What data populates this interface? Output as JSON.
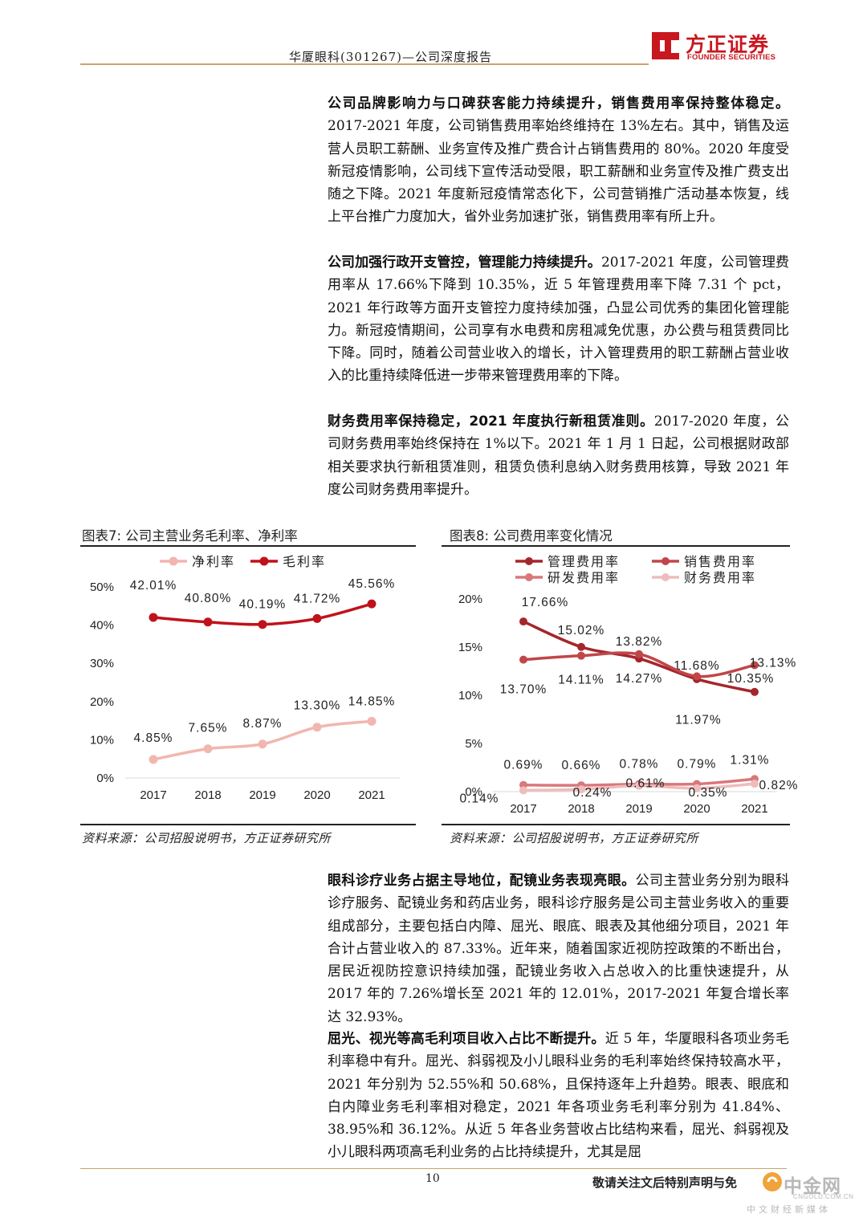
{
  "header": {
    "title": "华厦眼科(301267)—公司深度报告",
    "logo_cn": "方正证券",
    "logo_en": "FOUNDER SECURITIES",
    "logo_color": "#c8171e"
  },
  "paragraphs": [
    {
      "bold": "公司品牌影响力与口碑获客能力持续提升，销售费用率保持整体稳定。",
      "text": "2017-2021 年度，公司销售费用率始终维持在 13%左右。其中，销售及运营人员职工薪酬、业务宣传及推广费合计占销售费用的 80%。2020 年度受新冠疫情影响，公司线下宣传活动受限，职工薪酬和业务宣传及推广费支出随之下降。2021 年度新冠疫情常态化下，公司营销推广活动基本恢复，线上平台推广力度加大，省外业务加速扩张，销售费用率有所上升。"
    },
    {
      "bold": "公司加强行政开支管控，管理能力持续提升。",
      "text": "2017-2021 年度，公司管理费用率从 17.66%下降到 10.35%，近 5 年管理费用率下降 7.31 个 pct，2021 年行政等方面开支管控力度持续加强，凸显公司优秀的集团化管理能力。新冠疫情期间，公司享有水电费和房租减免优惠，办公费与租赁费同比下降。同时，随着公司营业收入的增长，计入管理费用的职工薪酬占营业收入的比重持续降低进一步带来管理费用率的下降。"
    },
    {
      "bold": "财务费用率保持稳定，2021 年度执行新租赁准则。",
      "text": "2017-2020 年度，公司财务费用率始终保持在 1%以下。2021 年 1 月 1 日起，公司根据财政部相关要求执行新租赁准则，租赁负债利息纳入财务费用核算，导致 2021 年度公司财务费用率提升。"
    },
    {
      "bold": "眼科诊疗业务占据主导地位，配镜业务表现亮眼。",
      "text": "公司主营业务分别为眼科诊疗服务、配镜业务和药店业务，眼科诊疗服务是公司主营业务收入的重要组成部分，主要包括白内障、屈光、眼底、眼表及其他细分项目，2021 年合计占营业收入的 87.33%。近年来，随着国家近视防控政策的不断出台，居民近视防控意识持续加强，配镜业务收入占总收入的比重快速提升，从 2017 年的 7.26%增长至 2021 年的 12.01%，2017-2021 年复合增长率达 32.93%。"
    },
    {
      "bold": "屈光、视光等高毛利项目收入占比不断提升。",
      "text": "近 5 年，华厦眼科各项业务毛利率稳中有升。屈光、斜弱视及小儿眼科业务的毛利率始终保持较高水平，2021 年分别为 52.55%和 50.68%，且保持逐年上升趋势。眼表、眼底和白内障业务毛利率相对稳定，2021 年各项业务毛利率分别为 41.84%、38.95%和 36.12%。从近 5 年各业务营收占比结构来看，屈光、斜弱视及小儿眼科两项高毛利业务的占比持续提升，尤其是屈"
    }
  ],
  "figures": {
    "fig7_title": "图表7:  公司主营业务毛利率、净利率",
    "fig8_title": "图表8:  公司费用率变化情况",
    "source1": "资料来源：公司招股说明书，方正证券研究所",
    "source2": "资料来源：公司招股说明书，方正证券研究所"
  },
  "chart_data": [
    {
      "type": "line",
      "x": [
        "2017",
        "2018",
        "2019",
        "2020",
        "2021"
      ],
      "ylim": [
        0,
        50
      ],
      "yticks": [
        "0%",
        "10%",
        "20%",
        "30%",
        "40%",
        "50%"
      ],
      "legend_position": "top",
      "series": [
        {
          "name": "净利率",
          "color": "#f2b6b0",
          "values": [
            4.85,
            7.65,
            8.87,
            13.3,
            14.85
          ],
          "labels": [
            "4.85%",
            "7.65%",
            "8.87%",
            "13.30%",
            "14.85%"
          ]
        },
        {
          "name": "毛利率",
          "color": "#c0121b",
          "values": [
            42.01,
            40.8,
            40.19,
            41.72,
            45.56
          ],
          "labels": [
            "42.01%",
            "40.80%",
            "40.19%",
            "41.72%",
            "45.56%"
          ]
        }
      ]
    },
    {
      "type": "line",
      "x": [
        "2017",
        "2018",
        "2019",
        "2020",
        "2021"
      ],
      "ylim": [
        0,
        20
      ],
      "yticks": [
        "0%",
        "5%",
        "10%",
        "15%",
        "20%"
      ],
      "legend_position": "top",
      "series": [
        {
          "name": "管理费用率",
          "color": "#a4262c",
          "values": [
            17.66,
            15.02,
            13.82,
            11.68,
            10.35
          ],
          "labels": [
            "17.66%",
            "15.02%",
            "13.82%",
            "11.68%",
            "10.35%"
          ]
        },
        {
          "name": "销售费用率",
          "color": "#c0464a",
          "values": [
            13.7,
            14.11,
            14.27,
            11.97,
            13.13
          ],
          "labels": [
            "13.70%",
            "14.11%",
            "14.27%",
            "11.97%",
            "13.13%"
          ]
        },
        {
          "name": "研发费用率",
          "color": "#d9777b",
          "values": [
            0.69,
            0.66,
            0.78,
            0.79,
            1.31
          ],
          "labels": [
            "0.69%",
            "0.66%",
            "0.78%",
            "0.79%",
            "1.31%"
          ]
        },
        {
          "name": "财务费用率",
          "color": "#efbcbc",
          "values": [
            0.14,
            0.24,
            0.61,
            0.35,
            0.82
          ],
          "labels": [
            "0.14%",
            "0.24%",
            "0.61%",
            "0.35%",
            "0.82%"
          ]
        }
      ]
    }
  ],
  "footer": {
    "page_number": "10",
    "note": "敬请关注文后特别声明与免",
    "watermark_cn": "中金网",
    "watermark_domain": "CNGOLD.COM.CN",
    "watermark_sub": "中文财经新媒体"
  }
}
